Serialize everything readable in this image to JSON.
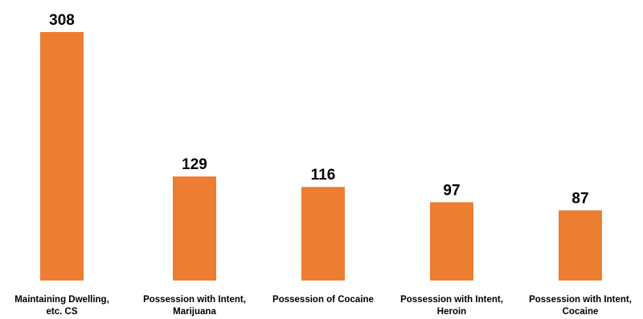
{
  "chart_data": {
    "type": "bar",
    "categories": [
      [
        "Maintaining Dwelling,",
        "etc. CS"
      ],
      [
        "Possession with Intent,",
        "Marijuana"
      ],
      [
        "Possession of Cocaine"
      ],
      [
        "Possession with Intent,",
        "Heroin"
      ],
      [
        "Possession with Intent,",
        "Cocaine"
      ]
    ],
    "values": [
      308,
      129,
      116,
      97,
      87
    ],
    "data_labels": [
      "308",
      "129",
      "116",
      "97",
      "87"
    ],
    "bar_color": "#ED7D31",
    "grid": false,
    "legend": "none"
  }
}
